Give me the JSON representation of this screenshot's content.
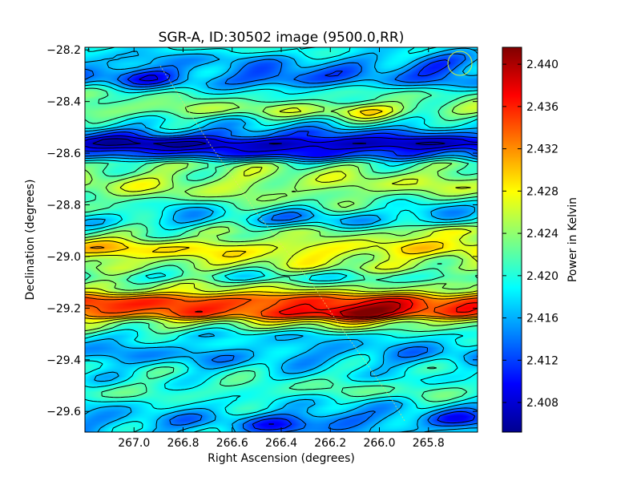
{
  "chart_data": {
    "type": "heatmap",
    "title": "SGR-A, ID:30502 image (9500.0,RR)",
    "xlabel": "Right Ascension (degrees)",
    "ylabel": "Declination (degrees)",
    "colorbar_label": "Power in Kelvin",
    "xlim": [
      267.2,
      265.6
    ],
    "ylim": [
      -29.68,
      -28.19
    ],
    "x_ticks": [
      267.0,
      266.8,
      266.6,
      266.4,
      266.2,
      266.0,
      265.8
    ],
    "x_tick_labels": [
      "267.0",
      "266.8",
      "266.6",
      "266.4",
      "266.2",
      "266.0",
      "265.8"
    ],
    "y_ticks": [
      -28.2,
      -28.4,
      -28.6,
      -28.8,
      -29.0,
      -29.2,
      -29.4,
      -29.6
    ],
    "y_tick_labels": [
      "−28.2",
      "−28.4",
      "−28.6",
      "−28.8",
      "−29.0",
      "−29.2",
      "−29.4",
      "−29.6"
    ],
    "colorbar_range": [
      2.4052,
      2.4416
    ],
    "colorbar_ticks": [
      2.408,
      2.412,
      2.416,
      2.42,
      2.424,
      2.428,
      2.432,
      2.436,
      2.44
    ],
    "colorbar_tick_labels": [
      "2.408",
      "2.412",
      "2.416",
      "2.420",
      "2.424",
      "2.428",
      "2.432",
      "2.436",
      "2.440"
    ],
    "colormap": "jet",
    "contour_color": "#000000",
    "dec_profile": [
      {
        "dec": -28.19,
        "power": 2.419
      },
      {
        "dec": -28.25,
        "power": 2.416
      },
      {
        "dec": -28.31,
        "power": 2.415
      },
      {
        "dec": -28.38,
        "power": 2.421
      },
      {
        "dec": -28.43,
        "power": 2.424
      },
      {
        "dec": -28.49,
        "power": 2.418
      },
      {
        "dec": -28.52,
        "power": 2.414
      },
      {
        "dec": -28.56,
        "power": 2.408
      },
      {
        "dec": -28.6,
        "power": 2.412
      },
      {
        "dec": -28.65,
        "power": 2.423
      },
      {
        "dec": -28.72,
        "power": 2.425
      },
      {
        "dec": -28.8,
        "power": 2.422
      },
      {
        "dec": -28.86,
        "power": 2.418
      },
      {
        "dec": -28.91,
        "power": 2.423
      },
      {
        "dec": -28.97,
        "power": 2.428
      },
      {
        "dec": -29.03,
        "power": 2.425
      },
      {
        "dec": -29.08,
        "power": 2.42
      },
      {
        "dec": -29.12,
        "power": 2.425
      },
      {
        "dec": -29.17,
        "power": 2.434
      },
      {
        "dec": -29.22,
        "power": 2.433
      },
      {
        "dec": -29.26,
        "power": 2.424
      },
      {
        "dec": -29.31,
        "power": 2.418
      },
      {
        "dec": -29.38,
        "power": 2.416
      },
      {
        "dec": -29.45,
        "power": 2.419
      },
      {
        "dec": -29.52,
        "power": 2.421
      },
      {
        "dec": -29.58,
        "power": 2.418
      },
      {
        "dec": -29.64,
        "power": 2.416
      },
      {
        "dec": -29.68,
        "power": 2.417
      }
    ],
    "features": [
      {
        "ra": 266.92,
        "dec": -28.57,
        "power": 2.4065
      },
      {
        "ra": 266.4,
        "dec": -28.58,
        "power": 2.4075
      },
      {
        "ra": 266.05,
        "dec": -28.58,
        "power": 2.4075
      },
      {
        "ra": 266.96,
        "dec": -28.3,
        "power": 2.411
      },
      {
        "ra": 266.37,
        "dec": -28.31,
        "power": 2.411
      },
      {
        "ra": 265.78,
        "dec": -28.26,
        "power": 2.412
      },
      {
        "ra": 266.07,
        "dec": -28.44,
        "power": 2.428
      },
      {
        "ra": 266.1,
        "dec": -29.22,
        "power": 2.4405
      },
      {
        "ra": 266.24,
        "dec": -29.22,
        "power": 2.437
      },
      {
        "ra": 266.9,
        "dec": -29.17,
        "power": 2.436
      },
      {
        "ra": 266.55,
        "dec": -29.19,
        "power": 2.436
      },
      {
        "ra": 265.9,
        "dec": -29.21,
        "power": 2.437
      },
      {
        "ra": 267.17,
        "dec": -28.97,
        "power": 2.43
      },
      {
        "ra": 265.72,
        "dec": -28.9,
        "power": 2.429
      },
      {
        "ra": 266.8,
        "dec": -28.82,
        "power": 2.417
      },
      {
        "ra": 265.78,
        "dec": -28.82,
        "power": 2.414
      },
      {
        "ra": 266.3,
        "dec": -28.83,
        "power": 2.416
      },
      {
        "ra": 266.2,
        "dec": -29.62,
        "power": 2.413
      },
      {
        "ra": 265.68,
        "dec": -29.63,
        "power": 2.411
      },
      {
        "ra": 266.4,
        "dec": -29.66,
        "power": 2.412
      }
    ]
  }
}
